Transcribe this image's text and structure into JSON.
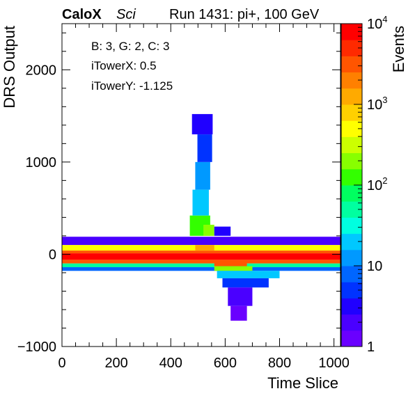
{
  "header": {
    "brand": "CaloX",
    "subtitle": "Sci",
    "run_label": "Run 1431: pi+, 100 GeV"
  },
  "info_box": {
    "line1": "B: 3, G: 2, C: 3",
    "line2": "iTowerX: 0.5",
    "line3": "iTowerY: -1.125"
  },
  "chart_data": {
    "type": "heatmap",
    "xlabel": "Time Slice",
    "ylabel": "DRS Output",
    "zlabel": "Events",
    "xlim": [
      0,
      1024
    ],
    "ylim": [
      -1000,
      2500
    ],
    "zlim": [
      1,
      10000
    ],
    "z_scale": "log",
    "x_ticks": [
      "0",
      "200",
      "400",
      "600",
      "800",
      "1000"
    ],
    "y_ticks": [
      "−1000",
      "0",
      "1000",
      "2000"
    ],
    "z_ticks": [
      {
        "value": 1,
        "base": "1",
        "exp": ""
      },
      {
        "value": 10,
        "base": "10",
        "exp": ""
      },
      {
        "value": 100,
        "base": "10",
        "exp": "2"
      },
      {
        "value": 1000,
        "base": "10",
        "exp": "3"
      },
      {
        "value": 10000,
        "base": "10",
        "exp": "4"
      }
    ],
    "palette": [
      "#6a00ff",
      "#4a00ff",
      "#2000ff",
      "#0033ff",
      "#0066ff",
      "#0099ff",
      "#00c8ff",
      "#00ffe0",
      "#00ffa0",
      "#00ff60",
      "#33ff00",
      "#88ff00",
      "#ccff00",
      "#ffff00",
      "#ffd000",
      "#ffaa00",
      "#ff8000",
      "#ff5500",
      "#ff2a00",
      "#ff0000"
    ],
    "bands": [
      {
        "x0": 0,
        "x1": 1024,
        "y0": 100,
        "y1": 190,
        "z": 2
      },
      {
        "x0": 0,
        "x1": 1024,
        "y0": 40,
        "y1": 100,
        "z": 500
      },
      {
        "x0": 0,
        "x1": 1024,
        "y0": 10,
        "y1": 40,
        "z": 3000
      },
      {
        "x0": 0,
        "x1": 1024,
        "y0": -60,
        "y1": 10,
        "z": 10000
      },
      {
        "x0": 0,
        "x1": 1024,
        "y0": -100,
        "y1": -60,
        "z": 3000
      },
      {
        "x0": 0,
        "x1": 1024,
        "y0": -140,
        "y1": -100,
        "z": 60
      },
      {
        "x0": 0,
        "x1": 1024,
        "y0": -180,
        "y1": -140,
        "z": 8
      },
      {
        "x0": 470,
        "x1": 545,
        "y0": 200,
        "y1": 420,
        "z": 100
      },
      {
        "x0": 480,
        "x1": 540,
        "y0": 420,
        "y1": 700,
        "z": 25
      },
      {
        "x0": 490,
        "x1": 545,
        "y0": 700,
        "y1": 1000,
        "z": 10
      },
      {
        "x0": 498,
        "x1": 552,
        "y0": 1000,
        "y1": 1300,
        "z": 6
      },
      {
        "x0": 478,
        "x1": 554,
        "y0": 1300,
        "y1": 1520,
        "z": 3
      },
      {
        "x0": 520,
        "x1": 560,
        "y0": 200,
        "y1": 320,
        "z": 200
      },
      {
        "x0": 560,
        "x1": 620,
        "y0": 200,
        "y1": 300,
        "z": 3
      },
      {
        "x0": 490,
        "x1": 560,
        "y0": 40,
        "y1": 100,
        "z": 1500
      },
      {
        "x0": 560,
        "x1": 680,
        "y0": -130,
        "y1": -60,
        "z": 3000
      },
      {
        "x0": 560,
        "x1": 700,
        "y0": -180,
        "y1": -130,
        "z": 200
      },
      {
        "x0": 570,
        "x1": 800,
        "y0": -260,
        "y1": -180,
        "z": 20
      },
      {
        "x0": 590,
        "x1": 760,
        "y0": -360,
        "y1": -260,
        "z": 4
      },
      {
        "x0": 610,
        "x1": 700,
        "y0": -560,
        "y1": -360,
        "z": 2
      },
      {
        "x0": 620,
        "x1": 680,
        "y0": -720,
        "y1": -560,
        "z": 1
      }
    ]
  }
}
